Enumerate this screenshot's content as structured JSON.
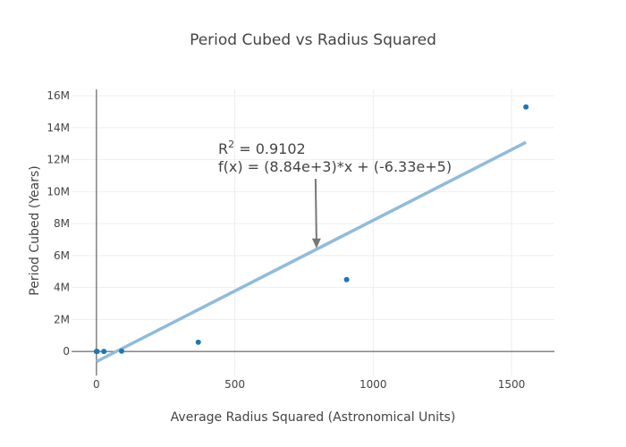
{
  "chart_data": {
    "type": "scatter",
    "title": "Period Cubed vs Radius Squared",
    "xlabel": "Average Radius Squared (Astronomical Units)",
    "ylabel": "Period Cubed (Years)",
    "xlim": [
      -90,
      1655
    ],
    "ylim": [
      -1500000,
      16400000
    ],
    "x_ticks": [
      0,
      500,
      1000,
      1500
    ],
    "x_tick_labels": [
      "0",
      "500",
      "1000",
      "1500"
    ],
    "y_ticks": [
      0,
      2000000,
      4000000,
      6000000,
      8000000,
      10000000,
      12000000,
      14000000,
      16000000
    ],
    "y_tick_labels": [
      "0",
      "2M",
      "4M",
      "6M",
      "8M",
      "10M",
      "12M",
      "14M",
      "16M"
    ],
    "grid": true,
    "legend": "none",
    "points_color": "#1f77b4",
    "fit_color": "#8fbcdb",
    "series": [
      {
        "name": "",
        "x": [
          0.15,
          0.52,
          1,
          2.3,
          27,
          91,
          368,
          904,
          1552
        ],
        "y": [
          0,
          0,
          1,
          7,
          1700,
          25000,
          580000,
          4500000,
          15300000
        ]
      }
    ],
    "fit": {
      "slope": 8840,
      "intercept": -633000,
      "x_start": 0,
      "x_end": 1552
    },
    "annotation": {
      "r2_prefix": "R",
      "r2_sup": "2",
      "r2_rest": " = 0.9102",
      "equation": "f(x) = (8.84e+3)*x + (-6.33e+5)",
      "arrow_x": 795,
      "arrow_y": 6400000
    }
  }
}
